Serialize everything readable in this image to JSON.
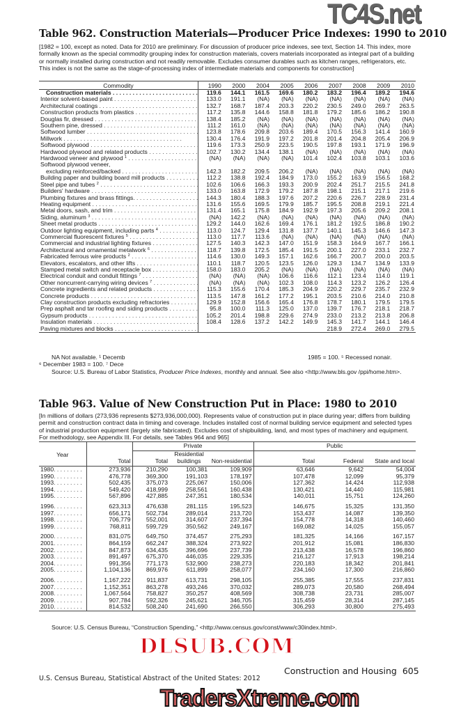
{
  "table962": {
    "title": "Table 962. Construction Materials—Producer Price Indexes: 1990 to 2010",
    "headnote": "[1982 = 100, except as noted. Data for 2010 are preliminary. For discussion of producer price indexes, see text, Section 14. This index, more formally known as the special commodity grouping index for construction materials, covers materials incorporated as integral part of a building or normally installed during construction and not readily removable. Excludes consumer durables such as kitchen ranges, refrigerators, etc. This index is not the same as the stage-of-processing index of intermediate materials and components for construction]",
    "columns": [
      "Commodity",
      "1990",
      "2000",
      "2004",
      "2005",
      "2006",
      "2007",
      "2008",
      "2009",
      "2010"
    ],
    "rows": [
      {
        "label": "Construction materials",
        "note": "",
        "bold": true,
        "values": [
          "119.6",
          "144.1",
          "161.5",
          "169.6",
          "180.2",
          "183.2",
          "196.4",
          "189.2",
          "194.6"
        ]
      },
      {
        "label": "Interior solvent-based paint",
        "note": "",
        "values": [
          "133.0",
          "191.1",
          "(NA)",
          "(NA)",
          "(NA)",
          "(NA)",
          "(NA)",
          "(NA)",
          "(NA)"
        ]
      },
      {
        "label": "Architectural coatings",
        "note": "",
        "values": [
          "132.7",
          "168.7",
          "187.4",
          "203.3",
          "220.2",
          "230.5",
          "249.0",
          "269.7",
          "263.5"
        ]
      },
      {
        "label": "Construction products from plastics",
        "note": "",
        "values": [
          "117.2",
          "135.8",
          "144.6",
          "158.8",
          "181.8",
          "179.2",
          "185.6",
          "186.2",
          "190.8"
        ]
      },
      {
        "label": "Douglas fir, dressed",
        "note": "",
        "values": [
          "138.4",
          "185.2",
          "(NA)",
          "(NA)",
          "(NA)",
          "(NA)",
          "(NA)",
          "(NA)",
          "(NA)"
        ]
      },
      {
        "label": "Southern pine, dressed",
        "note": "",
        "values": [
          "111.2",
          "161.0",
          "(NA)",
          "(NA)",
          "(NA)",
          "(NA)",
          "(NA)",
          "(NA)",
          "(NA)"
        ]
      },
      {
        "label": "Softwood lumber",
        "note": "",
        "values": [
          "123.8",
          "178.6",
          "209.8",
          "203.6",
          "189.4",
          "170.5",
          "156.3",
          "141.4",
          "160.9"
        ]
      },
      {
        "label": "Millwork",
        "note": "",
        "values": [
          "130.4",
          "176.4",
          "191.9",
          "197.2",
          "201.8",
          "201.4",
          "204.8",
          "205.4",
          "206.9"
        ]
      },
      {
        "label": "Softwood plywood",
        "note": "",
        "values": [
          "119.6",
          "173.3",
          "250.9",
          "223.5",
          "190.5",
          "197.8",
          "193.1",
          "171.9",
          "196.9"
        ]
      },
      {
        "label": "Hardwood plywood and related products",
        "note": "",
        "values": [
          "102.7",
          "130.2",
          "134.4",
          "138.1",
          "(NA)",
          "(NA)",
          "(NA)",
          "(NA)",
          "(NA)"
        ]
      },
      {
        "label": "Hardwood veneer and plywood",
        "note": "1",
        "values": [
          "(NA)",
          "(NA)",
          "(NA)",
          "(NA)",
          "101.4",
          "102.4",
          "103.8",
          "103.1",
          "103.6"
        ]
      },
      {
        "label": "Softwood plywood veneer,",
        "note": "",
        "nodots": true,
        "values": [
          "",
          "",
          "",
          "",
          "",
          "",
          "",
          "",
          ""
        ]
      },
      {
        "label": "  excluding reinforced/backed",
        "note": "",
        "indent": true,
        "values": [
          "142.3",
          "182.2",
          "209.5",
          "206.2",
          "(NA)",
          "(NA)",
          "(NA)",
          "(NA)",
          "(NA)"
        ]
      },
      {
        "label": "Building paper and building board mill products",
        "note": "",
        "values": [
          "112.2",
          "138.8",
          "192.4",
          "184.9",
          "173.0",
          "155.2",
          "163.9",
          "156.5",
          "168.2"
        ]
      },
      {
        "label": "Steel pipe and tubes",
        "note": "2",
        "values": [
          "102.6",
          "106.6",
          "166.3",
          "193.3",
          "200.9",
          "202.4",
          "251.7",
          "215.5",
          "241.8"
        ]
      },
      {
        "label": "Builders' hardware",
        "note": "",
        "values": [
          "133.0",
          "163.8",
          "172.9",
          "179.2",
          "187.8",
          "198.1",
          "215.1",
          "217.1",
          "219.6"
        ]
      },
      {
        "label": "Plumbing fixtures and brass fittings.",
        "note": "",
        "values": [
          "144.3",
          "180.4",
          "188.3",
          "197.6",
          "207.2",
          "220.6",
          "226.7",
          "228.9",
          "231.4"
        ]
      },
      {
        "label": "Heating equipment",
        "note": "",
        "values": [
          "131.6",
          "155.6",
          "169.5",
          "179.9",
          "185.7",
          "195.5",
          "208.8",
          "219.1",
          "221.4"
        ]
      },
      {
        "label": "Metal doors, sash, and trim",
        "note": "",
        "values": [
          "131.4",
          "165.1",
          "175.8",
          "184.9",
          "192.9",
          "197.3",
          "205.6",
          "209.2",
          "208.1"
        ]
      },
      {
        "label": "Siding, aluminum",
        "note": "3",
        "values": [
          "(NA)",
          "142.2",
          "(NA)",
          "(NA)",
          "(NA)",
          "(NA)",
          "(NA)",
          "(NA)",
          "(NA)"
        ]
      },
      {
        "label": "Sheet metal products",
        "note": "",
        "values": [
          "129.2",
          "144.0",
          "162.6",
          "169.4",
          "176.1",
          "181.2",
          "192.5",
          "186.8",
          "190.2"
        ]
      },
      {
        "label": "Outdoor lighting equipment, including parts",
        "note": "4",
        "values": [
          "113.0",
          "124.7",
          "129.4",
          "131.8",
          "137.7",
          "140.1",
          "145.3",
          "146.6",
          "147.3"
        ]
      },
      {
        "label": "Commercial fluorescent fixtures",
        "note": "5",
        "values": [
          "113.0",
          "117.7",
          "113.6",
          "(NA)",
          "(NA)",
          "(NA)",
          "(NA)",
          "(NA)",
          "(NA)"
        ]
      },
      {
        "label": "Commercial and industrial lighting fixtures",
        "note": "",
        "values": [
          "127.5",
          "140.3",
          "142.3",
          "147.0",
          "151.9",
          "158.3",
          "164.9",
          "167.7",
          "166.1"
        ]
      },
      {
        "label": "Architectural and ornamental metalwork",
        "note": "6",
        "values": [
          "118.7",
          "139.8",
          "172.5",
          "185.4",
          "191.5",
          "200.1",
          "227.0",
          "233.1",
          "232.7"
        ]
      },
      {
        "label": "Fabricated ferrous wire products",
        "note": "2",
        "values": [
          "114.6",
          "130.0",
          "149.3",
          "157.1",
          "162.6",
          "166.7",
          "200.7",
          "200.0",
          "203.5"
        ]
      },
      {
        "label": "Elevators, escalators, and other lifts",
        "note": "",
        "values": [
          "110.1",
          "118.7",
          "120.5",
          "123.5",
          "126.0",
          "129.3",
          "134.7",
          "134.9",
          "133.9"
        ]
      },
      {
        "label": "Stamped metal switch and receptacle box",
        "note": "",
        "values": [
          "158.0",
          "183.0",
          "205.2",
          "(NA)",
          "(NA)",
          "(NA)",
          "(NA)",
          "(NA)",
          "(NA)"
        ]
      },
      {
        "label": "Electrical conduit and conduit fittings",
        "note": "7",
        "values": [
          "(NA)",
          "(NA)",
          "(NA)",
          "106.6",
          "116.6",
          "112.1",
          "123.4",
          "114.0",
          "119.1"
        ]
      },
      {
        "label": "Other noncurrent-carrying wiring devices",
        "note": "7",
        "values": [
          "(NA)",
          "(NA)",
          "(NA)",
          "102.3",
          "108.0",
          "114.3",
          "123.2",
          "126.2",
          "126.4"
        ]
      },
      {
        "label": "Concrete ingredients and related products",
        "note": "",
        "values": [
          "115.3",
          "155.6",
          "170.4",
          "185.3",
          "204.9",
          "220.2",
          "229.7",
          "235.7",
          "232.9"
        ]
      },
      {
        "label": "Concrete products",
        "note": "",
        "values": [
          "113.5",
          "147.8",
          "161.2",
          "177.2",
          "195.1",
          "203.5",
          "210.6",
          "214.0",
          "210.8"
        ]
      },
      {
        "label": "Clay construction products excluding refractories",
        "note": "",
        "values": [
          "129.9",
          "152.8",
          "156.6",
          "165.4",
          "176.8",
          "178.7",
          "180.1",
          "179.5",
          "179.5"
        ]
      },
      {
        "label": "Prep asphalt and tar roofing and siding products",
        "note": "",
        "values": [
          "95.8",
          "100.0",
          "111.3",
          "125.0",
          "137.0",
          "139.7",
          "176.7",
          "218.1",
          "218.7"
        ]
      },
      {
        "label": "Gypsum products",
        "note": "",
        "values": [
          "105.2",
          "201.4",
          "198.8",
          "229.6",
          "274.9",
          "233.0",
          "213.2",
          "213.8",
          "206.8"
        ]
      },
      {
        "label": "Insulation materials",
        "note": "",
        "values": [
          "108.4",
          "128.6",
          "137.2",
          "142.2",
          "149.9",
          "145.3",
          "141.7",
          "144.1",
          "146.4"
        ]
      },
      {
        "label": "Paving mixtures and blocks",
        "note": "",
        "values": [
          "",
          "",
          "",
          "",
          "",
          "218.9",
          "272.4",
          "269.0",
          "279.5"
        ]
      }
    ],
    "footnote_line1": "NA Not available. ¹ Decemb",
    "footnote_line1_end": "1985 = 100. ⁵ Recessed nonair.",
    "footnote_line2": "⁶ December 1983 = 100. ⁷ Dece",
    "source_prefix": "Source: U.S. Bureau of Labor Statistics, ",
    "source_italic": "Producer Price Indexes",
    "source_suffix": ", monthly and annual. See also <http://www.bls.gov /ppi/home.htm>."
  },
  "table963": {
    "title": "Table 963. Value of New Construction Put in Place: 1980 to 2010",
    "headnote": "[In millions of dollars (273,936 represents $273,936,000,000). Represents value of construction put in place during year; differs from building permit and construction contract data in timing and coverage. Includes installed cost of normal building service equipment and selected types of industrial production equipment (largely site fabricated). Excludes cost of shipbuilding, land, and most types of machinery and equipment. For methodology, see Appendix III. For details, see Tables 964 and 965]",
    "header": {
      "year": "Year",
      "total": "Total",
      "private": "Private",
      "public": "Public",
      "private_total": "Total",
      "residential": "Residential buildings",
      "nonresidential": "Non-residential",
      "public_total": "Total",
      "federal": "Federal",
      "state_local": "State and local"
    },
    "rows": [
      {
        "year": "1980",
        "values": [
          "273,936",
          "210,290",
          "100,381",
          "109,909",
          "63,646",
          "9,642",
          "54,004"
        ]
      },
      {
        "year": "1990",
        "values": [
          "476,778",
          "369,300",
          "191,103",
          "178,197",
          "107,478",
          "12,099",
          "95,379"
        ]
      },
      {
        "year": "1993",
        "values": [
          "502,435",
          "375,073",
          "225,067",
          "150,006",
          "127,362",
          "14,424",
          "112,938"
        ]
      },
      {
        "year": "1994",
        "values": [
          "549,420",
          "418,999",
          "258,561",
          "160,438",
          "130,421",
          "14,440",
          "115,981"
        ]
      },
      {
        "year": "1995",
        "values": [
          "567,896",
          "427,885",
          "247,351",
          "180,534",
          "140,011",
          "15,751",
          "124,260"
        ]
      },
      {
        "year": "1996",
        "gap": true,
        "values": [
          "623,313",
          "476,638",
          "281,115",
          "195,523",
          "146,675",
          "15,325",
          "131,350"
        ]
      },
      {
        "year": "1997",
        "values": [
          "656,171",
          "502,734",
          "289,014",
          "213,720",
          "153,437",
          "14,087",
          "139,350"
        ]
      },
      {
        "year": "1998",
        "values": [
          "706,779",
          "552,001",
          "314,607",
          "237,394",
          "154,778",
          "14,318",
          "140,460"
        ]
      },
      {
        "year": "1999",
        "values": [
          "768,811",
          "599,729",
          "350,562",
          "249,167",
          "169,082",
          "14,025",
          "155,057"
        ]
      },
      {
        "year": "2000",
        "gap": true,
        "values": [
          "831,075",
          "649,750",
          "374,457",
          "275,293",
          "181,325",
          "14,166",
          "167,157"
        ]
      },
      {
        "year": "2001",
        "values": [
          "864,159",
          "662,247",
          "388,324",
          "273,922",
          "201,912",
          "15,081",
          "186,830"
        ]
      },
      {
        "year": "2002",
        "values": [
          "847,873",
          "634,435",
          "396,696",
          "237,739",
          "213,438",
          "16,578",
          "196,860"
        ]
      },
      {
        "year": "2003",
        "values": [
          "891,497",
          "675,370",
          "446,035",
          "229,335",
          "216,127",
          "17,913",
          "198,214"
        ]
      },
      {
        "year": "2004",
        "values": [
          "991,356",
          "771,173",
          "532,900",
          "238,273",
          "220,183",
          "18,342",
          "201,841"
        ]
      },
      {
        "year": "2005",
        "values": [
          "1,104,136",
          "869,976",
          "611,899",
          "258,077",
          "234,160",
          "17,300",
          "216,860"
        ]
      },
      {
        "year": "2006",
        "gap": true,
        "values": [
          "1,167,222",
          "911,837",
          "613,731",
          "298,105",
          "255,385",
          "17,555",
          "237,831"
        ]
      },
      {
        "year": "2007",
        "values": [
          "1,152,351",
          "863,278",
          "493,246",
          "370,032",
          "289,073",
          "20,580",
          "268,494"
        ]
      },
      {
        "year": "2008",
        "values": [
          "1,067,564",
          "758,827",
          "350,257",
          "408,569",
          "308,738",
          "23,731",
          "285,007"
        ]
      },
      {
        "year": "2009",
        "values": [
          "907,784",
          "592,326",
          "245,621",
          "346,705",
          "315,459",
          "28,314",
          "287,145"
        ]
      },
      {
        "year": "2010",
        "values": [
          "814,532",
          "508,240",
          "241,690",
          "266,550",
          "306,293",
          "30,800",
          "275,493"
        ]
      }
    ],
    "source": "Source: U.S. Census Bureau, “Construction Spending,” <http://www.census.gov/const/www/c30index.html>."
  },
  "page_footer": {
    "section": "Construction and Housing",
    "page_number": "605",
    "publication": "U.S. Census Bureau, Statistical Abstract of the United States: 2012"
  },
  "watermarks": {
    "top": "TC4S.net",
    "middle": "DLSUB.COM",
    "bottom": "TradersXtreme.com"
  },
  "colors": {
    "text": "#1a1a1a",
    "rule": "#444444",
    "watermark_red": "#d4141c"
  }
}
